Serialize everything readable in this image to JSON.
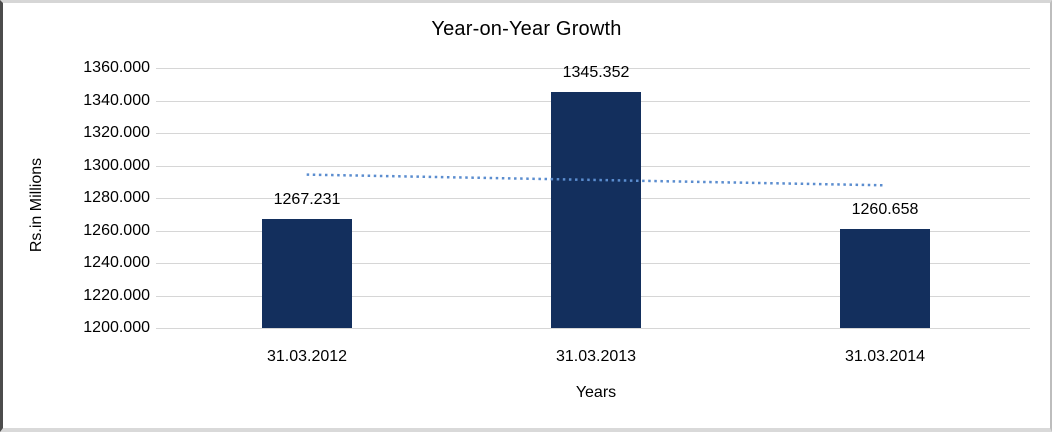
{
  "chart_data": {
    "type": "bar",
    "title": "Year-on-Year Growth",
    "xlabel": "Years",
    "ylabel": "Rs.in Millions",
    "categories": [
      "31.03.2012",
      "31.03.2013",
      "31.03.2014"
    ],
    "values": [
      1267.231,
      1345.352,
      1260.658
    ],
    "value_labels": [
      "1267.231",
      "1345.352",
      "1260.658"
    ],
    "ylim": [
      1200,
      1360
    ],
    "ytick_step": 20,
    "ytick_labels": [
      "1360.000",
      "1340.000",
      "1320.000",
      "1300.000",
      "1280.000",
      "1260.000",
      "1240.000",
      "1220.000",
      "1200.000"
    ],
    "grid": true,
    "legend": "none",
    "trendline": {
      "type": "linear",
      "style": "dotted",
      "start_value": 1294.4,
      "end_value": 1287.8
    },
    "colors": {
      "bar": "#132F5D",
      "gridline": "#D6D6D6",
      "trendline": "#5B8DCF",
      "text": "#000000"
    }
  }
}
